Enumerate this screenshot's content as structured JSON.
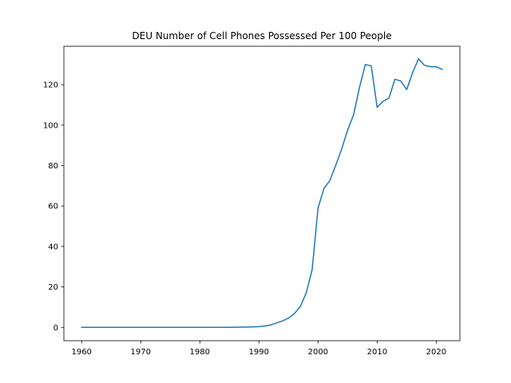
{
  "chart_data": {
    "type": "line",
    "title": "DEU Number of Cell Phones Possessed Per 100 People",
    "xlabel": "",
    "ylabel": "",
    "xlim": [
      1957,
      2024
    ],
    "ylim": [
      -6.6,
      139
    ],
    "x_ticks": [
      1960,
      1970,
      1980,
      1990,
      2000,
      2010,
      2020
    ],
    "y_ticks": [
      0,
      20,
      40,
      60,
      80,
      100,
      120
    ],
    "grid": false,
    "series_color": "#1f77b4",
    "series": [
      {
        "x": [
          1960,
          1961,
          1962,
          1963,
          1964,
          1965,
          1966,
          1967,
          1968,
          1969,
          1970,
          1971,
          1972,
          1973,
          1974,
          1975,
          1976,
          1977,
          1978,
          1979,
          1980,
          1981,
          1982,
          1983,
          1984,
          1985,
          1986,
          1987,
          1988,
          1989,
          1990,
          1991,
          1992,
          1993,
          1994,
          1995,
          1996,
          1997,
          1998,
          1999,
          2000,
          2001,
          2002,
          2003,
          2004,
          2005,
          2006,
          2007,
          2008,
          2009,
          2010,
          2011,
          2012,
          2013,
          2014,
          2015,
          2016,
          2017,
          2018,
          2019,
          2020,
          2021
        ],
        "values": [
          0,
          0,
          0,
          0,
          0,
          0,
          0,
          0,
          0,
          0,
          0,
          0,
          0,
          0,
          0,
          0,
          0,
          0,
          0,
          0,
          0,
          0,
          0,
          0,
          0,
          0,
          0.05,
          0.1,
          0.15,
          0.25,
          0.35,
          0.65,
          1.2,
          2.2,
          3.2,
          4.6,
          6.8,
          10.3,
          17.0,
          28.5,
          59.0,
          68.7,
          72.6,
          80.2,
          88.2,
          97.5,
          105.0,
          118.5,
          130.0,
          129.3,
          108.8,
          111.8,
          113.4,
          122.7,
          121.8,
          117.6,
          126.0,
          132.8,
          129.6,
          128.9,
          128.9,
          127.6
        ]
      }
    ]
  }
}
